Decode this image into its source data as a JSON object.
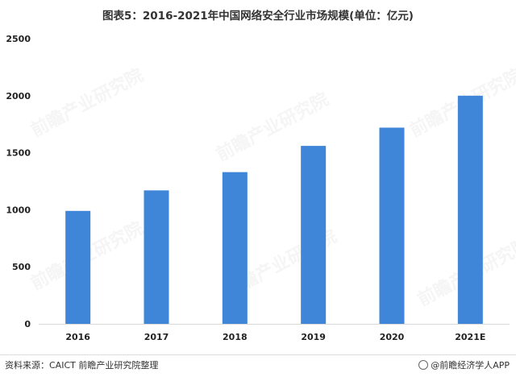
{
  "chart_data": {
    "type": "bar",
    "title": "图表5：2016-2021年中国网络安全行业市场规模(单位：亿元)",
    "categories": [
      "2016",
      "2017",
      "2018",
      "2019",
      "2020",
      "2021E"
    ],
    "values": [
      990,
      1170,
      1330,
      1560,
      1720,
      2000
    ],
    "ylim": [
      0,
      2500
    ],
    "yticks": [
      0,
      500,
      1000,
      1500,
      2000,
      2500
    ],
    "xlabel": "",
    "ylabel": "",
    "grid": false,
    "legend": "none",
    "bar_color": "#3f86d9"
  },
  "footer": {
    "source": "资料来源：CAICT 前瞻产业研究院整理",
    "brand": "@前瞻经济学人APP"
  },
  "watermark_text": "前瞻产业研究院"
}
